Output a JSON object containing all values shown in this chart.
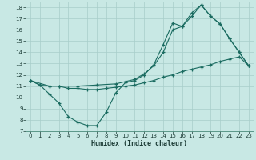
{
  "xlabel": "Humidex (Indice chaleur)",
  "bg_color": "#c8e8e4",
  "line_color": "#1a6b60",
  "grid_color": "#a8ceca",
  "xlim": [
    -0.5,
    23.5
  ],
  "ylim": [
    7,
    18.5
  ],
  "xticks": [
    0,
    1,
    2,
    3,
    4,
    5,
    6,
    7,
    8,
    9,
    10,
    11,
    12,
    13,
    14,
    15,
    16,
    17,
    18,
    19,
    20,
    21,
    22,
    23
  ],
  "yticks": [
    7,
    8,
    9,
    10,
    11,
    12,
    13,
    14,
    15,
    16,
    17,
    18
  ],
  "curve1_x": [
    0,
    1,
    2,
    3,
    4,
    5,
    6,
    7,
    8,
    9,
    10,
    11,
    12,
    13,
    14,
    15,
    16,
    17,
    18,
    19,
    20,
    21,
    22,
    23
  ],
  "curve1_y": [
    11.5,
    11.1,
    10.3,
    9.5,
    8.3,
    7.8,
    7.5,
    7.5,
    8.7,
    10.4,
    11.3,
    11.5,
    12.0,
    12.9,
    14.7,
    16.6,
    16.3,
    17.5,
    18.2,
    17.2,
    16.5,
    15.2,
    14.0,
    12.8
  ],
  "curve2_x": [
    0,
    2,
    3,
    5,
    7,
    9,
    10,
    11,
    12,
    13,
    14,
    15,
    16,
    17,
    18,
    19,
    20,
    21,
    22,
    23
  ],
  "curve2_y": [
    11.5,
    11.0,
    11.0,
    11.0,
    11.1,
    11.2,
    11.4,
    11.6,
    12.1,
    12.8,
    14.0,
    16.0,
    16.3,
    17.2,
    18.2,
    17.2,
    16.5,
    15.2,
    14.0,
    12.8
  ],
  "curve3_x": [
    0,
    1,
    2,
    3,
    4,
    5,
    6,
    7,
    8,
    9,
    10,
    11,
    12,
    13,
    14,
    15,
    16,
    17,
    18,
    19,
    20,
    21,
    22,
    23
  ],
  "curve3_y": [
    11.5,
    11.1,
    11.0,
    11.0,
    10.8,
    10.8,
    10.7,
    10.7,
    10.8,
    10.9,
    11.0,
    11.1,
    11.3,
    11.5,
    11.8,
    12.0,
    12.3,
    12.5,
    12.7,
    12.9,
    13.2,
    13.4,
    13.6,
    12.8
  ]
}
